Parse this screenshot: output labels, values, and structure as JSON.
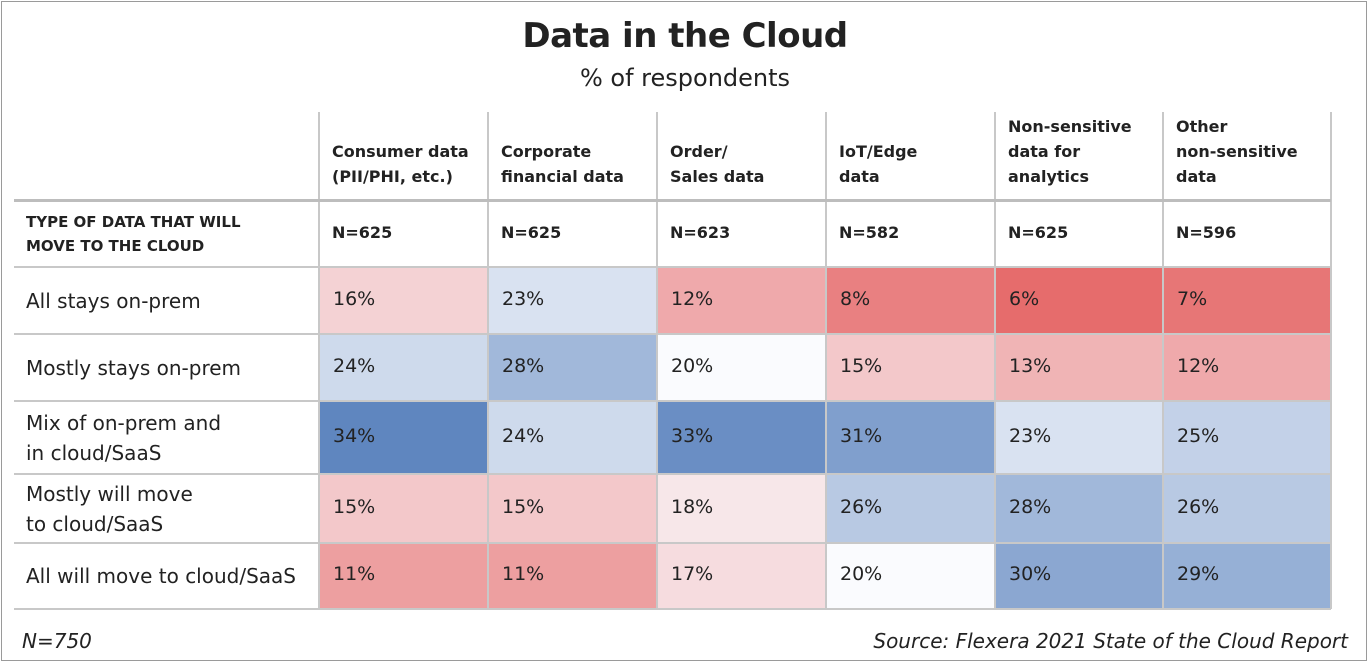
{
  "title": "Data in the Cloud",
  "subtitle": "% of respondents",
  "footer": {
    "n_note": "N=750",
    "source": "Source: Flexera 2021 State of the Cloud Report"
  },
  "chart_data": {
    "type": "heatmap",
    "title": "Data in the Cloud",
    "subtitle": "% of respondents",
    "header_label_lines": [
      "TYPE OF DATA THAT WILL",
      "MOVE TO THE CLOUD"
    ],
    "columns": [
      {
        "lines": [
          "Consumer data",
          "(PII/PHI, etc.)"
        ],
        "n": "N=625"
      },
      {
        "lines": [
          "Corporate",
          "financial data"
        ],
        "n": "N=625"
      },
      {
        "lines": [
          "Order/",
          "Sales data"
        ],
        "n": "N=623"
      },
      {
        "lines": [
          "IoT/Edge",
          "data"
        ],
        "n": "N=582"
      },
      {
        "lines": [
          "Non-sensitive",
          "data for",
          "analytics"
        ],
        "n": "N=625"
      },
      {
        "lines": [
          "Other",
          "non-sensitive",
          "data"
        ],
        "n": "N=596"
      }
    ],
    "rows": [
      {
        "lines": [
          "All stays on-prem"
        ],
        "values": [
          16,
          23,
          12,
          8,
          6,
          7
        ],
        "labels": [
          "16%",
          "23%",
          "12%",
          "8%",
          "6%",
          "7%"
        ]
      },
      {
        "lines": [
          "Mostly stays on-prem"
        ],
        "values": [
          24,
          28,
          20,
          15,
          13,
          12
        ],
        "labels": [
          "24%",
          "28%",
          "20%",
          "15%",
          "13%",
          "12%"
        ]
      },
      {
        "lines": [
          "Mix of on-prem and",
          "in cloud/SaaS"
        ],
        "values": [
          34,
          24,
          33,
          31,
          23,
          25
        ],
        "labels": [
          "34%",
          "24%",
          "33%",
          "31%",
          "23%",
          "25%"
        ]
      },
      {
        "lines": [
          "Mostly will move",
          "to cloud/SaaS"
        ],
        "values": [
          15,
          15,
          18,
          26,
          28,
          26
        ],
        "labels": [
          "15%",
          "15%",
          "18%",
          "26%",
          "28%",
          "26%"
        ]
      },
      {
        "lines": [
          "All will move to cloud/SaaS"
        ],
        "values": [
          11,
          11,
          17,
          20,
          30,
          29
        ],
        "labels": [
          "11%",
          "11%",
          "17%",
          "20%",
          "30%",
          "29%"
        ]
      }
    ],
    "color_scale": {
      "low": "#e66c6c",
      "mid": "#fafbfe",
      "high": "#5f86bf",
      "low_value": 6,
      "mid_value": 20,
      "high_value": 34
    },
    "legend": "none"
  }
}
